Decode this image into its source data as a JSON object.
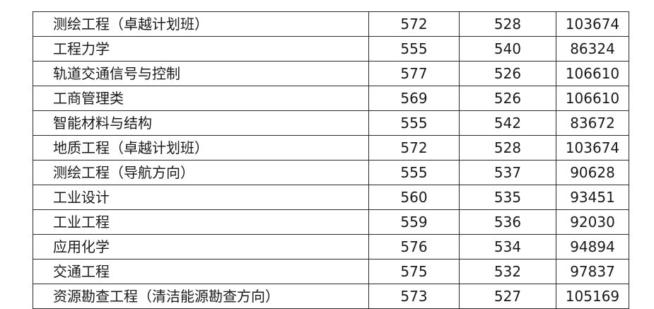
{
  "rows": [
    {
      "major": "测绘工程（卓越计划班）",
      "c2": "572",
      "c3": "528",
      "c4": "103674"
    },
    {
      "major": "工程力学",
      "c2": "555",
      "c3": "540",
      "c4": "86324"
    },
    {
      "major": "轨道交通信号与控制",
      "c2": "577",
      "c3": "526",
      "c4": "106610"
    },
    {
      "major": "工商管理类",
      "c2": "569",
      "c3": "526",
      "c4": "106610"
    },
    {
      "major": "智能材料与结构",
      "c2": "555",
      "c3": "542",
      "c4": "83672"
    },
    {
      "major": "地质工程（卓越计划班）",
      "c2": "572",
      "c3": "528",
      "c4": "103674"
    },
    {
      "major": "测绘工程（导航方向）",
      "c2": "555",
      "c3": "537",
      "c4": "90628"
    },
    {
      "major": "工业设计",
      "c2": "560",
      "c3": "535",
      "c4": "93451"
    },
    {
      "major": "工业工程",
      "c2": "559",
      "c3": "536",
      "c4": "92030"
    },
    {
      "major": "应用化学",
      "c2": "576",
      "c3": "534",
      "c4": "94894"
    },
    {
      "major": "交通工程",
      "c2": "575",
      "c3": "532",
      "c4": "97837"
    },
    {
      "major": "资源勘查工程（清洁能源勘查方向）",
      "c2": "573",
      "c3": "527",
      "c4": "105169"
    }
  ]
}
